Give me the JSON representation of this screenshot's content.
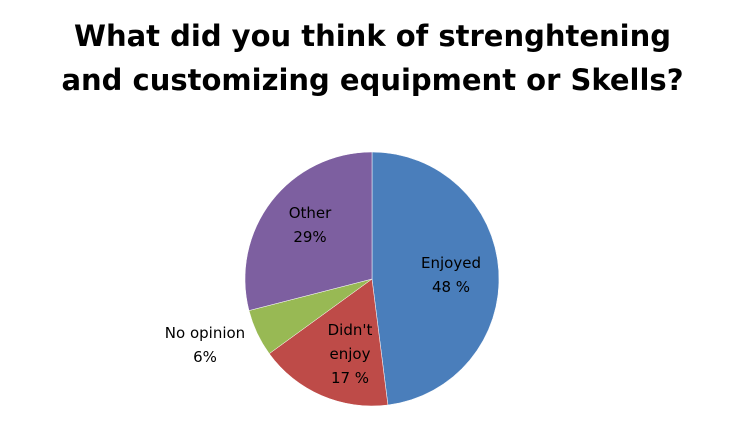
{
  "chart_data": {
    "type": "pie",
    "title": "What did you think of strenghtening and customizing equipment or Skells?",
    "categories": [
      "Enjoyed",
      "Didn't enjoy",
      "No opinion",
      "Other"
    ],
    "values": [
      48,
      17,
      6,
      29
    ],
    "value_labels": [
      "48 %",
      "17 %",
      "6%",
      "29%"
    ],
    "colors": [
      "#4a7ebb",
      "#be4b48",
      "#98b954",
      "#7d5fa0"
    ]
  }
}
